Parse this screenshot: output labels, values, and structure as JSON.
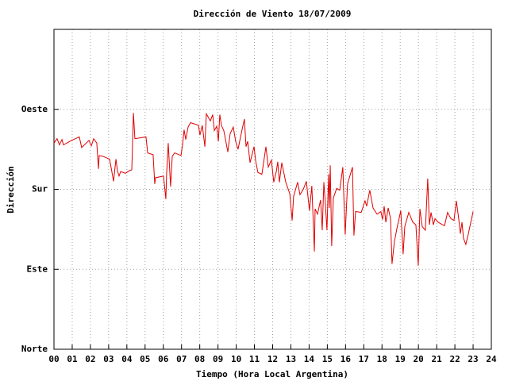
{
  "chart_data": {
    "type": "line",
    "title": "Dirección de Viento 18/07/2009",
    "x_label": "Tiempo (Hora Local Argentina)",
    "y_label": "Dirección",
    "xlim": [
      0,
      24
    ],
    "ylim": [
      0,
      360
    ],
    "xticks": [
      {
        "value": 0,
        "label": "00"
      },
      {
        "value": 1,
        "label": "01"
      },
      {
        "value": 2,
        "label": "02"
      },
      {
        "value": 3,
        "label": "03"
      },
      {
        "value": 4,
        "label": "04"
      },
      {
        "value": 5,
        "label": "05"
      },
      {
        "value": 6,
        "label": "06"
      },
      {
        "value": 7,
        "label": "07"
      },
      {
        "value": 8,
        "label": "08"
      },
      {
        "value": 9,
        "label": "09"
      },
      {
        "value": 10,
        "label": "10"
      },
      {
        "value": 11,
        "label": "11"
      },
      {
        "value": 12,
        "label": "12"
      },
      {
        "value": 13,
        "label": "13"
      },
      {
        "value": 14,
        "label": "14"
      },
      {
        "value": 15,
        "label": "15"
      },
      {
        "value": 16,
        "label": "16"
      },
      {
        "value": 17,
        "label": "17"
      },
      {
        "value": 18,
        "label": "18"
      },
      {
        "value": 19,
        "label": "19"
      },
      {
        "value": 20,
        "label": "20"
      },
      {
        "value": 21,
        "label": "21"
      },
      {
        "value": 22,
        "label": "22"
      },
      {
        "value": 23,
        "label": "23"
      },
      {
        "value": 24,
        "label": "24"
      }
    ],
    "yticks": [
      {
        "value": 0,
        "label": "Norte"
      },
      {
        "value": 90,
        "label": "Este"
      },
      {
        "value": 180,
        "label": "Sur"
      },
      {
        "value": 270,
        "label": "Oeste"
      }
    ],
    "grid": true,
    "x": [
      0.0,
      0.17,
      0.3,
      0.44,
      0.52,
      0.96,
      1.39,
      1.52,
      1.92,
      2.05,
      2.18,
      2.35,
      2.44,
      2.48,
      2.7,
      3.05,
      3.14,
      3.27,
      3.4,
      3.48,
      3.57,
      3.66,
      3.92,
      4.14,
      4.27,
      4.36,
      4.44,
      5.05,
      5.14,
      5.44,
      5.53,
      5.57,
      6.01,
      6.14,
      6.18,
      6.27,
      6.4,
      6.49,
      6.62,
      6.97,
      7.06,
      7.14,
      7.23,
      7.36,
      7.49,
      7.93,
      8.01,
      8.14,
      8.28,
      8.36,
      8.58,
      8.71,
      8.8,
      8.93,
      9.02,
      9.1,
      9.19,
      9.32,
      9.45,
      9.54,
      9.67,
      9.84,
      9.97,
      10.1,
      10.32,
      10.45,
      10.54,
      10.63,
      10.76,
      10.98,
      11.06,
      11.19,
      11.41,
      11.63,
      11.76,
      11.93,
      12.06,
      12.2,
      12.28,
      12.37,
      12.5,
      12.72,
      12.94,
      13.07,
      13.15,
      13.37,
      13.5,
      13.68,
      13.85,
      14.02,
      14.15,
      14.29,
      14.33,
      14.46,
      14.63,
      14.72,
      14.81,
      14.9,
      14.98,
      15.07,
      15.11,
      15.16,
      15.24,
      15.33,
      15.51,
      15.68,
      15.85,
      15.98,
      16.11,
      16.38,
      16.46,
      16.55,
      16.86,
      17.07,
      17.16,
      17.33,
      17.51,
      17.73,
      17.94,
      18.03,
      18.12,
      18.21,
      18.34,
      18.47,
      18.55,
      18.68,
      18.82,
      19.03,
      19.16,
      19.25,
      19.47,
      19.69,
      19.86,
      19.99,
      20.08,
      20.21,
      20.38,
      20.51,
      20.6,
      20.69,
      20.82,
      20.91,
      21.08,
      21.43,
      21.6,
      21.78,
      21.95,
      22.08,
      22.21,
      22.3,
      22.39,
      22.47,
      22.6,
      22.74,
      23.0
    ],
    "series": [
      {
        "color": "#e00000",
        "values": [
          232,
          237,
          230,
          236,
          230,
          235,
          239,
          227,
          235,
          229,
          237,
          232,
          203,
          218,
          217,
          214,
          204,
          189,
          214,
          201,
          195,
          200,
          198,
          201,
          202,
          266,
          237,
          239,
          221,
          219,
          186,
          193,
          195,
          169,
          197,
          232,
          183,
          217,
          221,
          218,
          231,
          247,
          236,
          250,
          255,
          252,
          241,
          252,
          228,
          265,
          257,
          264,
          246,
          251,
          234,
          264,
          252,
          246,
          232,
          222,
          243,
          250,
          234,
          225,
          247,
          259,
          228,
          234,
          210,
          228,
          213,
          199,
          197,
          228,
          205,
          213,
          188,
          200,
          211,
          188,
          210,
          188,
          175,
          145,
          172,
          188,
          174,
          180,
          189,
          156,
          184,
          110,
          158,
          152,
          168,
          134,
          188,
          161,
          134,
          197,
          159,
          207,
          116,
          170,
          181,
          179,
          205,
          129,
          186,
          205,
          128,
          155,
          154,
          167,
          161,
          179,
          159,
          152,
          155,
          146,
          161,
          143,
          159,
          147,
          96,
          121,
          136,
          156,
          107,
          138,
          154,
          143,
          140,
          94,
          158,
          138,
          134,
          192,
          140,
          154,
          140,
          147,
          143,
          139,
          154,
          147,
          145,
          167,
          147,
          130,
          143,
          125,
          118,
          130,
          155
        ]
      }
    ]
  }
}
